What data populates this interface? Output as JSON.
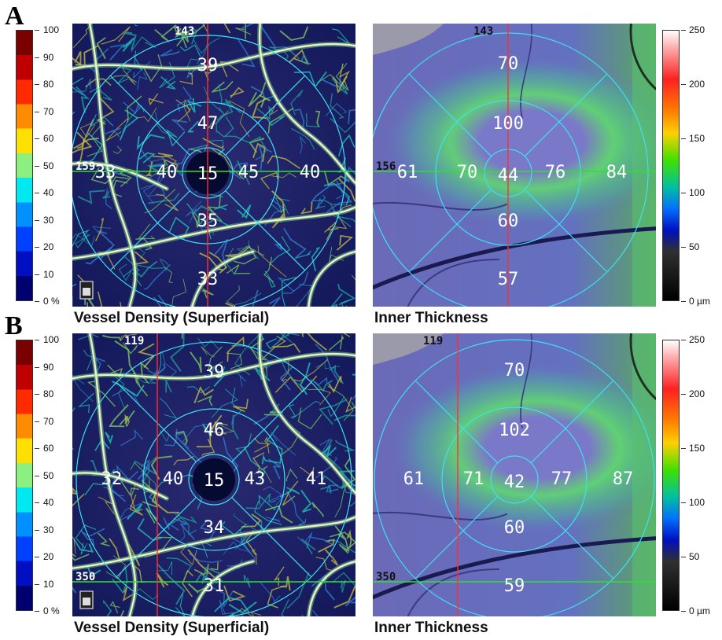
{
  "panels": [
    {
      "letter": "A",
      "vessel": {
        "caption": "Vessel Density (Superficial)",
        "scan_top": "143",
        "scan_left": "159",
        "center": "15",
        "inner": {
          "top": "47",
          "left": "40",
          "right": "45",
          "bottom": "35"
        },
        "outer": {
          "top": "39",
          "left": "33",
          "right": "40",
          "bottom": "33"
        }
      },
      "thickness": {
        "caption": "Inner Thickness",
        "scan_top": "143",
        "scan_left": "156",
        "center": "44",
        "inner": {
          "top": "100",
          "left": "70",
          "right": "76",
          "bottom": "60"
        },
        "outer": {
          "top": "70",
          "left": "61",
          "right": "84",
          "bottom": "57"
        }
      }
    },
    {
      "letter": "B",
      "vessel": {
        "caption": "Vessel Density (Superficial)",
        "scan_top": "119",
        "scan_left": "350",
        "center": "15",
        "inner": {
          "top": "46",
          "left": "40",
          "right": "43",
          "bottom": "34"
        },
        "outer": {
          "top": "39",
          "left": "32",
          "right": "41",
          "bottom": "31"
        }
      },
      "thickness": {
        "caption": "Inner Thickness",
        "scan_top": "119",
        "scan_left": "350",
        "center": "42",
        "inner": {
          "top": "102",
          "left": "71",
          "right": "77",
          "bottom": "60"
        },
        "outer": {
          "top": "70",
          "left": "61",
          "right": "87",
          "bottom": "59"
        }
      }
    }
  ],
  "density_scale": {
    "labels": [
      "100",
      "90",
      "80",
      "70",
      "60",
      "50",
      "40",
      "30",
      "20",
      "10",
      "0 %"
    ],
    "colors": [
      "#7a0000",
      "#c00000",
      "#ff2a00",
      "#ff8c00",
      "#ffe000",
      "#8cf080",
      "#00e8f0",
      "#0090ff",
      "#0040ff",
      "#0010c0",
      "#000070"
    ]
  },
  "thickness_scale": {
    "labels": [
      "250",
      "200",
      "150",
      "100",
      "50",
      "0 µm"
    ]
  }
}
